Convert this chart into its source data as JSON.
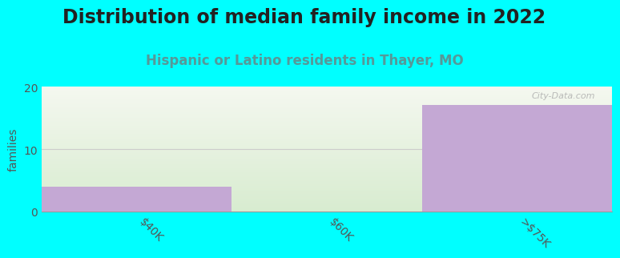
{
  "title": "Distribution of median family income in 2022",
  "subtitle": "Hispanic or Latino residents in Thayer, MO",
  "categories": [
    "$40K",
    "$60K",
    ">$75K"
  ],
  "values": [
    4,
    0,
    17
  ],
  "bar_color": "#C4A8D4",
  "background_color": "#00FFFF",
  "plot_bg_top": "#F5F8F0",
  "plot_bg_bottom": "#D8ECD0",
  "ylabel": "families",
  "ylim": [
    0,
    20
  ],
  "yticks": [
    0,
    10,
    20
  ],
  "title_fontsize": 17,
  "subtitle_fontsize": 12,
  "subtitle_color": "#559999",
  "ylabel_fontsize": 10,
  "tick_fontsize": 10,
  "watermark": "City-Data.com",
  "grid_color": "#DDDDDD",
  "bar_width": 1.0
}
